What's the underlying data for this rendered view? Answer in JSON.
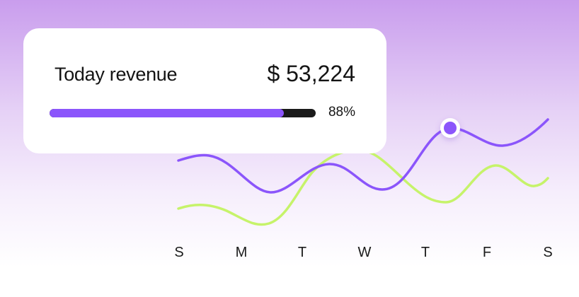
{
  "card": {
    "title": "Today revenue",
    "amount": "$ 53,224",
    "progress_percent": 88,
    "progress_label": "88%"
  },
  "chart": {
    "days": [
      "S",
      "M",
      "T",
      "W",
      "T",
      "F",
      "S"
    ],
    "colors": {
      "primary": "#8b55fb",
      "secondary": "#c6f36a",
      "track": "#1a1a1a"
    }
  }
}
